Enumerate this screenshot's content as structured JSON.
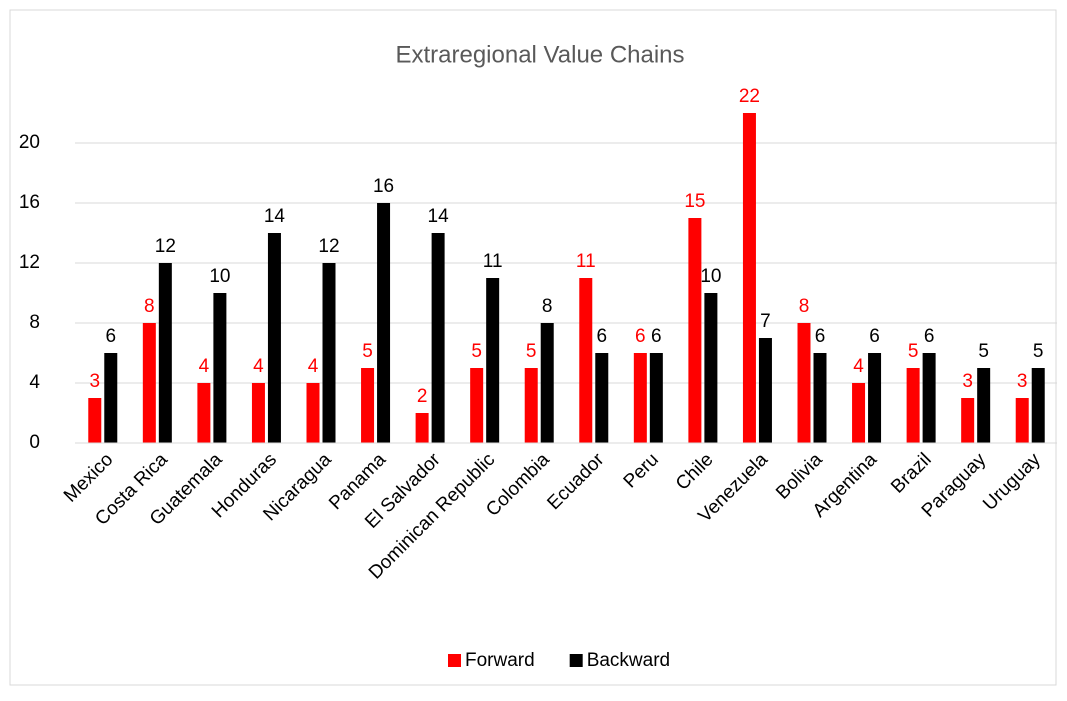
{
  "chart_data": {
    "type": "bar",
    "title": "Extraregional Value Chains",
    "categories": [
      "Mexico",
      "Costa Rica",
      "Guatemala",
      "Honduras",
      "Nicaragua",
      "Panama",
      "El Salvador",
      "Dominican Republic",
      "Colombia",
      "Ecuador",
      "Peru",
      "Chile",
      "Venezuela",
      "Bolivia",
      "Argentina",
      "Brazil",
      "Paraguay",
      "Uruguay"
    ],
    "series": [
      {
        "name": "Forward",
        "color": "#ff0000",
        "values": [
          3,
          8,
          4,
          4,
          4,
          5,
          2,
          5,
          5,
          11,
          6,
          15,
          22,
          8,
          4,
          5,
          3,
          3
        ]
      },
      {
        "name": "Backward",
        "color": "#000000",
        "values": [
          6,
          12,
          10,
          14,
          12,
          16,
          14,
          11,
          8,
          6,
          6,
          10,
          7,
          6,
          6,
          6,
          5,
          5
        ]
      }
    ],
    "ylim": [
      0,
      22
    ],
    "yticks": [
      0,
      4,
      8,
      12,
      16,
      20
    ],
    "grid": true,
    "legend": "bottom"
  }
}
